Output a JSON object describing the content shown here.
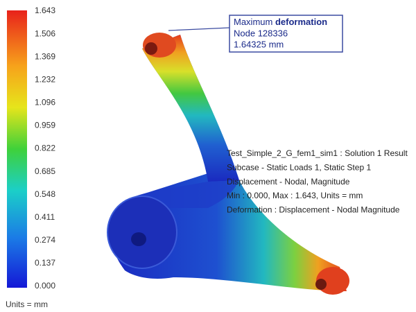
{
  "legend": {
    "labels": [
      "1.643",
      "1.506",
      "1.369",
      "1.232",
      "1.096",
      "0.959",
      "0.822",
      "0.685",
      "0.548",
      "0.411",
      "0.274",
      "0.137",
      "0.000"
    ],
    "units": "Units = mm"
  },
  "callout": {
    "line1_regular": "Maximum",
    "line1_bold": "deformation",
    "line2": "Node 128336",
    "line3": "1.64325 mm"
  },
  "info": [
    "Test_Simple_2_G_fem1_sim1 : Solution 1 Result",
    "Subcase - Static Loads 1, Static Step 1",
    "Displacement - Nodal, Magnitude",
    "Min : 0.000, Max : 1.643, Units = mm",
    "Deformation : Displacement - Nodal Magnitude"
  ]
}
